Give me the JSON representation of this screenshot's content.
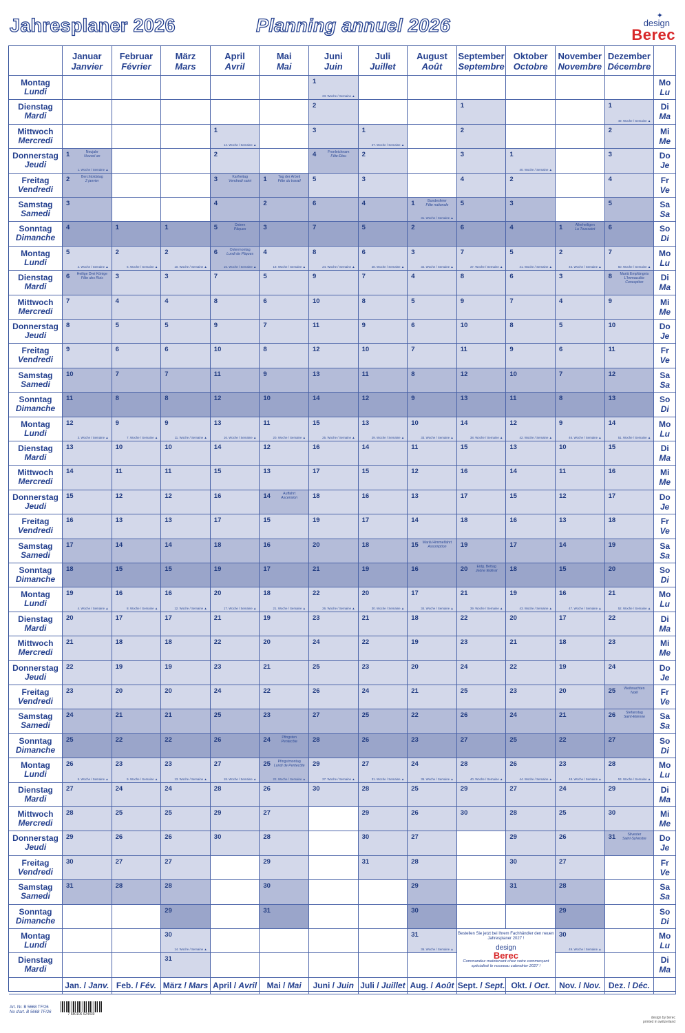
{
  "header": {
    "title_de": "Jahresplaner 2026",
    "title_fr": "Planning annuel 2026",
    "logo_small": "design",
    "logo_brand": "Berec"
  },
  "months": [
    {
      "de": "Januar",
      "fr": "Janvier",
      "short_de": "Jan. /",
      "short_fr": "Janv.",
      "days": 31,
      "start": 3
    },
    {
      "de": "Februar",
      "fr": "Février",
      "short_de": "Feb. /",
      "short_fr": "Fév.",
      "days": 28,
      "start": 6
    },
    {
      "de": "März",
      "fr": "Mars",
      "short_de": "März /",
      "short_fr": "Mars",
      "days": 31,
      "start": 6
    },
    {
      "de": "April",
      "fr": "Avril",
      "short_de": "April /",
      "short_fr": "Avril",
      "days": 30,
      "start": 2
    },
    {
      "de": "Mai",
      "fr": "Mai",
      "short_de": "Mai /",
      "short_fr": "Mai",
      "days": 31,
      "start": 4
    },
    {
      "de": "Juni",
      "fr": "Juin",
      "short_de": "Juni /",
      "short_fr": "Juin",
      "days": 30,
      "start": 0
    },
    {
      "de": "Juli",
      "fr": "Juillet",
      "short_de": "Juli /",
      "short_fr": "Juillet",
      "days": 31,
      "start": 2
    },
    {
      "de": "August",
      "fr": "Août",
      "short_de": "Aug. /",
      "short_fr": "Août",
      "days": 31,
      "start": 5
    },
    {
      "de": "September",
      "fr": "Septembre",
      "short_de": "Sept. /",
      "short_fr": "Sept.",
      "days": 30,
      "start": 1
    },
    {
      "de": "Oktober",
      "fr": "Octobre",
      "short_de": "Okt. /",
      "short_fr": "Oct.",
      "days": 31,
      "start": 3
    },
    {
      "de": "November",
      "fr": "Novembre",
      "short_de": "Nov. /",
      "short_fr": "Nov.",
      "days": 30,
      "start": 6
    },
    {
      "de": "Dezember",
      "fr": "Décembre",
      "short_de": "Dez. /",
      "short_fr": "Déc.",
      "days": 31,
      "start": 1
    }
  ],
  "weekdays": [
    {
      "de": "Montag",
      "fr": "Lundi",
      "short_de": "Mo",
      "short_fr": "Lu"
    },
    {
      "de": "Dienstag",
      "fr": "Mardi",
      "short_de": "Di",
      "short_fr": "Ma"
    },
    {
      "de": "Mittwoch",
      "fr": "Mercredi",
      "short_de": "Mi",
      "short_fr": "Me"
    },
    {
      "de": "Donnerstag",
      "fr": "Jeudi",
      "short_de": "Do",
      "short_fr": "Je"
    },
    {
      "de": "Freitag",
      "fr": "Vendredi",
      "short_de": "Fr",
      "short_fr": "Ve"
    },
    {
      "de": "Samstag",
      "fr": "Samedi",
      "short_de": "Sa",
      "short_fr": "Sa"
    },
    {
      "de": "Sonntag",
      "fr": "Dimanche",
      "short_de": "So",
      "short_fr": "Di"
    }
  ],
  "week_label": "Woche / Semaine",
  "holidays": [
    {
      "month": 1,
      "day": 1,
      "de": "Neujahr",
      "fr": "Nouvel an"
    },
    {
      "month": 1,
      "day": 2,
      "de": "Berchtoldstag",
      "fr": "2 janvier"
    },
    {
      "month": 1,
      "day": 6,
      "de": "Heilige Drei Könige",
      "fr": "Fête des Rois"
    },
    {
      "month": 4,
      "day": 3,
      "de": "Karfreitag",
      "fr": "Vendredi saint"
    },
    {
      "month": 4,
      "day": 5,
      "de": "Ostern",
      "fr": "Pâques"
    },
    {
      "month": 4,
      "day": 6,
      "de": "Ostermontag",
      "fr": "Lundi de Pâques"
    },
    {
      "month": 5,
      "day": 1,
      "de": "Tag der Arbeit",
      "fr": "Fête du travail"
    },
    {
      "month": 5,
      "day": 14,
      "de": "Auffahrt",
      "fr": "Ascension"
    },
    {
      "month": 5,
      "day": 24,
      "de": "Pfingsten",
      "fr": "Pentecôte"
    },
    {
      "month": 5,
      "day": 25,
      "de": "Pfingstmontag",
      "fr": "Lundi de Pentecôte"
    },
    {
      "month": 6,
      "day": 4,
      "de": "Fronleichnam",
      "fr": "Fête-Dieu"
    },
    {
      "month": 8,
      "day": 1,
      "de": "Bundesfeier",
      "fr": "Fête nationale"
    },
    {
      "month": 8,
      "day": 15,
      "de": "Mariä Himmelfahrt",
      "fr": "Assomption"
    },
    {
      "month": 9,
      "day": 20,
      "de": "Eidg. Bettag",
      "fr": "Jeûne fédéral"
    },
    {
      "month": 11,
      "day": 1,
      "de": "Allerheiligen",
      "fr": "La Toussaint"
    },
    {
      "month": 12,
      "day": 8,
      "de": "Mariä Empfängnis",
      "fr": "L'Immaculée Conception"
    },
    {
      "month": 12,
      "day": 25,
      "de": "Weihnachten",
      "fr": "Noël"
    },
    {
      "month": 12,
      "day": 26,
      "de": "Stefanstag",
      "fr": "Saint-Etienne"
    },
    {
      "month": 12,
      "day": 31,
      "de": "Silvester",
      "fr": "Saint-Sylvestre"
    }
  ],
  "promo": {
    "line1": "Bestellen Sie jetzt bei Ihrem Fachhändler den neuen Jahresplaner 2027 !",
    "logo_small": "design",
    "logo_brand": "Berec",
    "line2": "Commandez maintenant chez votre commerçant spécialisé le nouveau calendrier 2027 !"
  },
  "footer": {
    "art_de": "Art. Nr. B 5668 TF/26",
    "art_fr": "No d'art. B 5668 TF/26",
    "barcode": "7 680106 624439",
    "credit1": "design by berec",
    "credit2": "printed in switzerland"
  },
  "colors": {
    "ink": "#233f8e",
    "weekday": "#d3d8ea",
    "saturday": "#b4bcd9",
    "sunday": "#9aa5ca",
    "brand_red": "#d8282a"
  }
}
